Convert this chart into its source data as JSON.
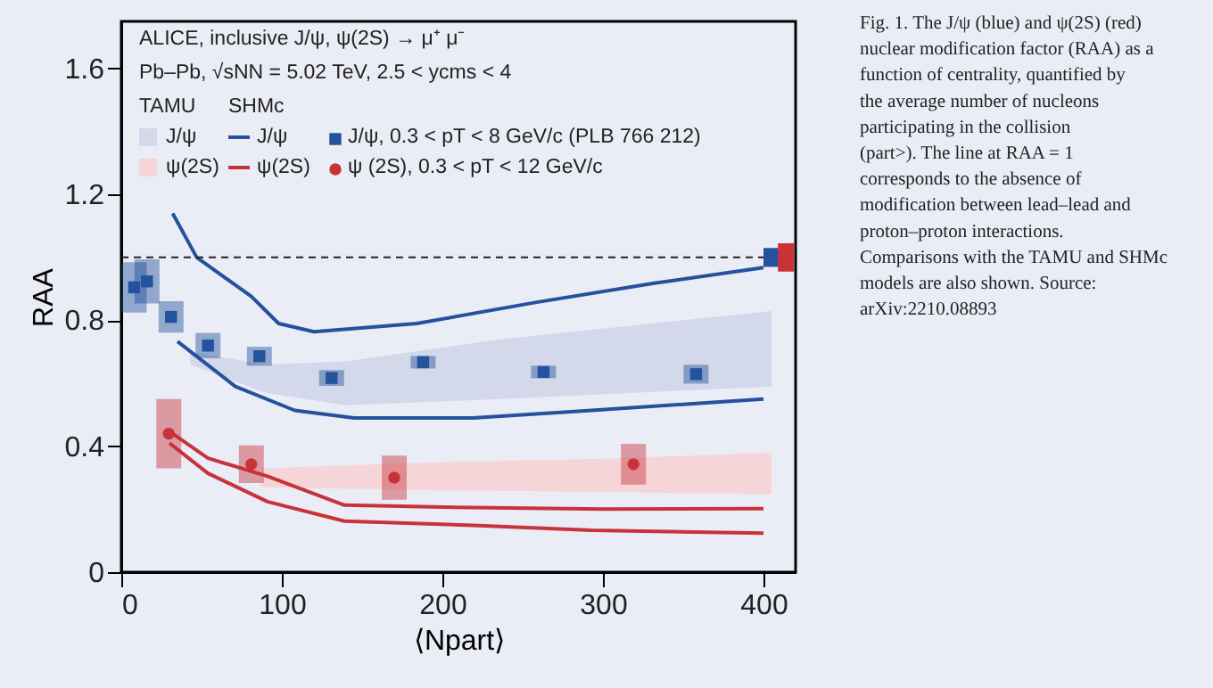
{
  "chart_data": {
    "type": "scatter",
    "xlabel": "⟨Npart⟩",
    "ylabel": "RAA",
    "xlim": [
      0,
      420
    ],
    "ylim": [
      0,
      1.75
    ],
    "xticks": [
      0,
      100,
      200,
      300,
      400
    ],
    "yticks": [
      0,
      0.4,
      0.8,
      1.2,
      1.6
    ],
    "grid": false,
    "legend": "top left",
    "annotations": [
      "ALICE, inclusive J/ψ, ψ(2S) → μ⁺ μ⁻",
      "Pb–Pb, √sNN = 5.02 TeV, 2.5 < ycms < 4",
      "TAMU",
      "SHMc",
      "Fig. 1. The J/ψ (blue) and ψ(2S) (red) nuclear modification factor (RAA) as a function of centrality, quantified by the average number of nucleons participating in the collision (part>). The line at RAA = 1 corresponds to the absence of modification between lead–lead and proton–proton interactions. Comparisons with the TAMU and SHMc models are also shown. Source: arXiv:2210.08893"
    ],
    "ref_lines": [
      {
        "axis": "y",
        "value": 1,
        "color": "#222222",
        "line_style": "dashed"
      }
    ],
    "series": [
      {
        "type": "area",
        "name": "J/ψ",
        "color": "#d3d8ea",
        "x": [
          43,
          90,
          140,
          236,
          405
        ],
        "values": [
          null,
          null,
          null,
          null,
          null
        ],
        "upper": [
          0.7,
          0.66,
          0.67,
          0.74,
          0.83
        ],
        "lower": [
          0.66,
          0.57,
          0.53,
          0.55,
          0.59
        ]
      },
      {
        "type": "area",
        "name": "ψ(2S)",
        "color": "#f6d5d8",
        "x": [
          87,
          200,
          300,
          405
        ],
        "values": [
          null,
          null,
          null,
          null
        ],
        "upper": [
          0.33,
          0.35,
          0.36,
          0.38
        ],
        "lower": [
          0.27,
          0.26,
          0.255,
          0.247
        ]
      },
      {
        "type": "line",
        "name": "J/ψ",
        "color": "#24529c",
        "x": [
          32,
          47,
          81,
          98,
          120,
          184,
          258,
          332,
          400
        ],
        "values": [
          1.14,
          1.0,
          0.876,
          0.79,
          0.764,
          0.79,
          0.857,
          0.918,
          0.968
        ]
      },
      {
        "type": "line",
        "color": "#24529c",
        "x": [
          35,
          71,
          108,
          145,
          219,
          293,
          400
        ],
        "values": [
          0.733,
          0.59,
          0.514,
          0.49,
          0.49,
          0.514,
          0.55
        ]
      },
      {
        "type": "line",
        "name": "ψ(2S)",
        "color": "#c8333a",
        "x": [
          30,
          54,
          91,
          139,
          219,
          300,
          400
        ],
        "values": [
          0.447,
          0.362,
          0.305,
          0.213,
          0.205,
          0.2,
          0.202
        ]
      },
      {
        "type": "line",
        "color": "#c8333a",
        "x": [
          30,
          54,
          91,
          139,
          219,
          293,
          400
        ],
        "values": [
          0.41,
          0.314,
          0.224,
          0.162,
          0.149,
          0.133,
          0.124
        ]
      },
      {
        "marker": "square",
        "name": "J/ψ, 0.3 < pT < 8 GeV/c (PLB 766 212)",
        "color": "#24529c",
        "x": [
          8,
          16,
          31,
          54,
          86,
          131,
          188,
          263,
          358
        ],
        "values": [
          0.905,
          0.924,
          0.811,
          0.72,
          0.686,
          0.617,
          0.667,
          0.636,
          0.629
        ],
        "errors": [
          0.08,
          0.07,
          0.05,
          0.04,
          0.03,
          0.025,
          0.02,
          0.02,
          0.03
        ]
      },
      {
        "marker": "circle",
        "name": "ψ (2S), 0.3 < pT < 12 GeV/c",
        "color": "#c8333a",
        "x": [
          29.6,
          81,
          170,
          319
        ],
        "values": [
          0.44,
          0.343,
          0.3,
          0.343
        ],
        "errors": [
          0.11,
          0.06,
          0.07,
          0.065
        ]
      },
      {
        "type": "bar",
        "color": "#24529c",
        "x": [
          405
        ],
        "base": [
          0.97
        ],
        "values": [
          0.06
        ]
      },
      {
        "type": "bar",
        "color": "#c8333a",
        "x": [
          414
        ],
        "base": [
          0.955
        ],
        "values": [
          0.09
        ]
      }
    ]
  }
}
